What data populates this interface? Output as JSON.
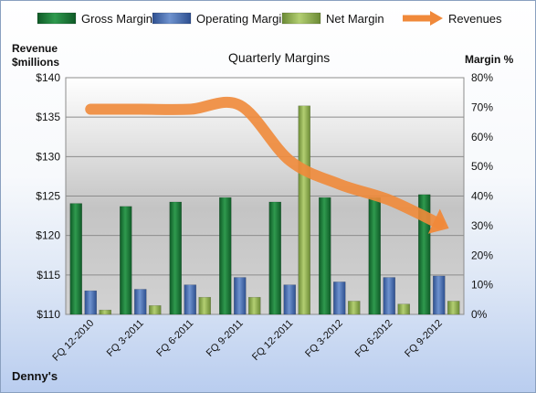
{
  "chart_data": {
    "type": "bar",
    "title": "Quarterly Margins",
    "company": "Denny's",
    "y_left_label": [
      "Revenue",
      "$millions"
    ],
    "y_right_label": "Margin %",
    "categories": [
      "FQ 12-2010",
      "FQ 3-2011",
      "FQ 6-2011",
      "FQ 9-2011",
      "FQ 12-2011",
      "FQ 3-2012",
      "FQ 6-2012",
      "FQ 9-2012"
    ],
    "y_left_ticks": [
      "$110",
      "$115",
      "$120",
      "$125",
      "$130",
      "$135",
      "$140"
    ],
    "y_right_ticks": [
      "0%",
      "10%",
      "20%",
      "30%",
      "40%",
      "50%",
      "60%",
      "70%",
      "80%"
    ],
    "ylim_left": [
      110,
      140
    ],
    "ylim_right": [
      0,
      80
    ],
    "series": [
      {
        "name": "Gross Margin",
        "axis": "right",
        "color": "#1f7a3c",
        "values": [
          37.5,
          36.5,
          38.0,
          39.5,
          38.0,
          39.5,
          39.5,
          40.5
        ]
      },
      {
        "name": "Operating Margin",
        "axis": "right",
        "color": "#4a6fb0",
        "values": [
          8.0,
          8.5,
          10.0,
          12.5,
          10.0,
          11.0,
          12.5,
          13.0
        ]
      },
      {
        "name": "Net Margin",
        "axis": "right",
        "color": "#8cad4a",
        "values": [
          1.5,
          3.0,
          5.8,
          5.8,
          70.5,
          4.5,
          3.5,
          4.5
        ]
      },
      {
        "name": "Revenues",
        "axis": "left",
        "type": "line",
        "color": "#f0893a",
        "values": [
          136.0,
          136.0,
          136.0,
          136.5,
          129.5,
          126.5,
          124.5,
          121.5
        ]
      }
    ],
    "legend_position": "top",
    "grid": true
  }
}
